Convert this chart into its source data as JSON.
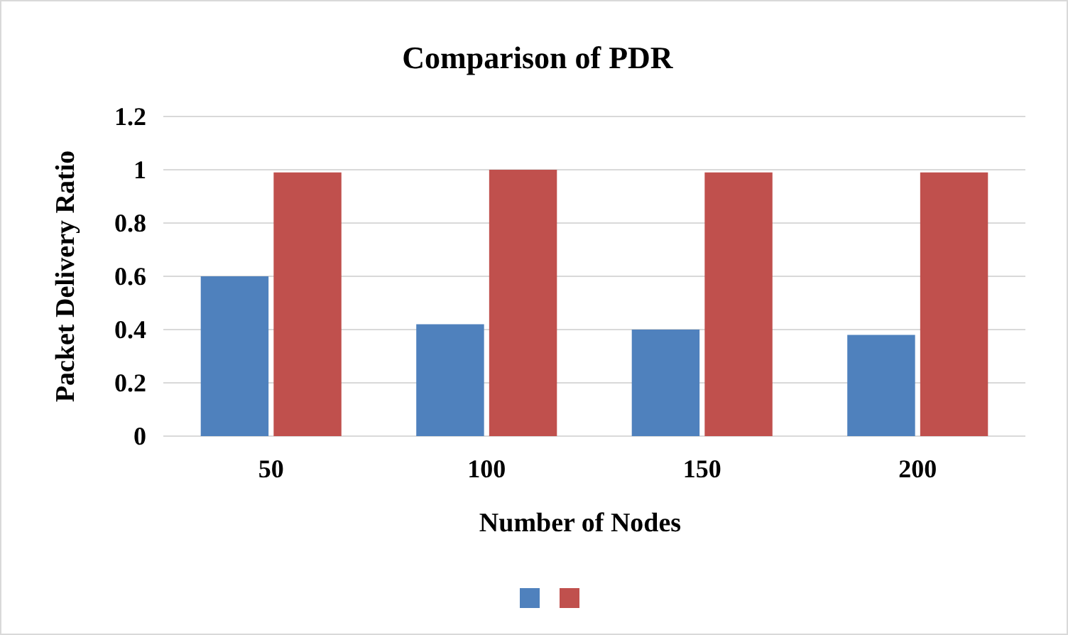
{
  "chart_data": {
    "type": "bar",
    "title": "Comparison of PDR",
    "xlabel": "Number of Nodes",
    "ylabel": "Packet Delivery Ratio",
    "categories": [
      "50",
      "100",
      "150",
      "200"
    ],
    "series": [
      {
        "color": "#4f81bd",
        "values": [
          0.6,
          0.42,
          0.4,
          0.38
        ]
      },
      {
        "color": "#c0504d",
        "values": [
          0.99,
          1.0,
          0.99,
          0.99
        ]
      }
    ],
    "ylim": [
      0,
      1.2
    ],
    "yticks": [
      0,
      0.2,
      0.4,
      0.6,
      0.8,
      1,
      1.2
    ],
    "grid": "y"
  }
}
